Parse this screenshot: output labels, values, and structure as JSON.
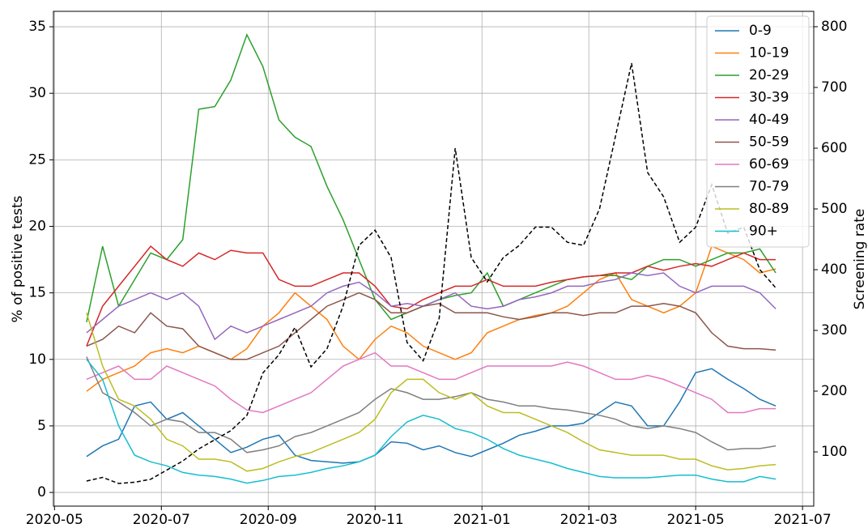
{
  "chart_data": {
    "type": "line",
    "ylabel": "% of positive tests",
    "y2label": "Screening rate",
    "grid": true,
    "legend": "upper right",
    "xlim": [
      4.98,
      19.21
    ],
    "ylim": [
      -1.03,
      36.16
    ],
    "y2lim": [
      10.7,
      825.3
    ],
    "xticks": [
      {
        "value": 5,
        "label": "2020-05"
      },
      {
        "value": 7,
        "label": "2020-07"
      },
      {
        "value": 9,
        "label": "2020-09"
      },
      {
        "value": 11,
        "label": "2020-11"
      },
      {
        "value": 13,
        "label": "2021-01"
      },
      {
        "value": 15,
        "label": "2021-03"
      },
      {
        "value": 17,
        "label": "2021-05"
      },
      {
        "value": 19,
        "label": "2021-07"
      }
    ],
    "yticks": [
      0,
      5,
      10,
      15,
      20,
      25,
      30,
      35
    ],
    "y2ticks": [
      100,
      200,
      300,
      400,
      500,
      600,
      700,
      800
    ],
    "x": [
      5.6,
      5.9,
      6.2,
      6.5,
      6.8,
      7.1,
      7.4,
      7.7,
      8.0,
      8.3,
      8.6,
      8.9,
      9.2,
      9.5,
      9.8,
      10.1,
      10.4,
      10.7,
      11.0,
      11.3,
      11.6,
      11.9,
      12.2,
      12.5,
      12.8,
      13.1,
      13.4,
      13.7,
      14.0,
      14.3,
      14.6,
      14.9,
      15.2,
      15.5,
      15.8,
      16.1,
      16.4,
      16.7,
      17.0,
      17.3,
      17.6,
      17.9,
      18.2,
      18.5
    ],
    "series": [
      {
        "name": "0-9",
        "color": "#1f77b4",
        "values": [
          2.7,
          3.5,
          4.0,
          6.5,
          6.8,
          5.5,
          6.0,
          5.0,
          4.0,
          3.0,
          3.4,
          4.0,
          4.3,
          2.8,
          2.4,
          2.3,
          2.2,
          2.3,
          2.8,
          3.8,
          3.7,
          3.2,
          3.5,
          3.0,
          2.7,
          3.2,
          3.7,
          4.3,
          4.6,
          5.0,
          5.0,
          5.2,
          6.0,
          6.8,
          6.5,
          5.0,
          5.0,
          6.8,
          9.0,
          9.3,
          8.5,
          7.8,
          7.0,
          6.5
        ]
      },
      {
        "name": "10-19",
        "color": "#ff7f0e",
        "values": [
          7.6,
          8.5,
          9.0,
          9.5,
          10.5,
          10.8,
          10.5,
          11.0,
          10.5,
          10.0,
          10.8,
          12.5,
          13.5,
          15.0,
          14.0,
          13.0,
          11.0,
          10.0,
          11.5,
          12.5,
          12.0,
          11.0,
          10.5,
          10.0,
          10.5,
          12.0,
          12.5,
          13.0,
          13.3,
          13.5,
          14.0,
          15.0,
          16.0,
          16.5,
          14.5,
          14.0,
          13.5,
          14.0,
          15.0,
          18.5,
          18.0,
          17.5,
          16.5,
          16.8
        ]
      },
      {
        "name": "20-29",
        "color": "#2ca02c",
        "values": [
          12.8,
          18.5,
          14.0,
          16.0,
          18.0,
          17.5,
          19.0,
          28.8,
          29.0,
          31.0,
          34.4,
          32.0,
          28.0,
          26.7,
          26.0,
          23.0,
          20.5,
          17.5,
          14.5,
          13.0,
          13.5,
          14.0,
          14.5,
          14.8,
          15.0,
          16.5,
          14.0,
          14.5,
          15.0,
          15.5,
          16.0,
          16.2,
          16.3,
          16.3,
          16.0,
          17.0,
          17.5,
          17.5,
          17.0,
          17.5,
          18.0,
          18.0,
          18.3,
          16.5
        ]
      },
      {
        "name": "30-39",
        "color": "#d62728",
        "values": [
          11.0,
          14.0,
          15.5,
          17.0,
          18.5,
          17.5,
          17.0,
          18.0,
          17.5,
          18.2,
          18.0,
          18.0,
          16.0,
          15.5,
          15.5,
          16.0,
          16.5,
          16.5,
          15.5,
          14.0,
          13.8,
          14.5,
          15.0,
          15.5,
          15.5,
          16.0,
          15.5,
          15.5,
          15.5,
          15.8,
          16.0,
          16.2,
          16.3,
          16.5,
          16.5,
          17.0,
          16.7,
          17.0,
          17.2,
          17.0,
          17.5,
          18.0,
          17.5,
          17.5
        ]
      },
      {
        "name": "40-49",
        "color": "#9467bd",
        "values": [
          12.0,
          13.0,
          14.0,
          14.5,
          15.0,
          14.5,
          15.0,
          14.0,
          11.5,
          12.5,
          12.0,
          12.5,
          13.0,
          13.5,
          14.0,
          15.0,
          15.5,
          15.8,
          15.0,
          14.0,
          14.2,
          14.0,
          14.5,
          15.0,
          14.0,
          13.8,
          14.0,
          14.5,
          14.7,
          15.0,
          15.5,
          15.5,
          15.8,
          16.0,
          16.5,
          16.3,
          16.5,
          15.5,
          15.0,
          15.5,
          15.5,
          15.5,
          15.0,
          13.8
        ]
      },
      {
        "name": "50-59",
        "color": "#8c564b",
        "values": [
          11.0,
          11.5,
          12.5,
          12.0,
          13.5,
          12.5,
          12.3,
          11.0,
          10.5,
          10.0,
          10.0,
          10.5,
          11.0,
          12.0,
          13.0,
          14.0,
          14.5,
          15.0,
          14.5,
          13.5,
          13.5,
          14.0,
          14.2,
          13.5,
          13.5,
          13.5,
          13.2,
          13.0,
          13.2,
          13.5,
          13.5,
          13.3,
          13.5,
          13.5,
          14.0,
          14.0,
          14.2,
          14.0,
          13.5,
          12.0,
          11.0,
          10.8,
          10.8,
          10.7
        ]
      },
      {
        "name": "60-69",
        "color": "#e377c2",
        "values": [
          8.5,
          9.0,
          9.5,
          8.5,
          8.5,
          9.5,
          9.0,
          8.5,
          8.0,
          7.0,
          6.2,
          6.0,
          6.5,
          7.0,
          7.5,
          8.5,
          9.5,
          10.0,
          10.5,
          9.5,
          9.5,
          9.0,
          8.5,
          8.5,
          9.0,
          9.5,
          9.5,
          9.5,
          9.5,
          9.5,
          9.8,
          9.5,
          9.0,
          8.5,
          8.5,
          8.8,
          8.5,
          8.0,
          7.5,
          7.0,
          6.0,
          6.0,
          6.3,
          6.3
        ]
      },
      {
        "name": "70-79",
        "color": "#7f7f7f",
        "values": [
          10.2,
          7.5,
          6.8,
          6.0,
          5.0,
          5.5,
          5.3,
          4.5,
          4.5,
          4.0,
          3.0,
          3.2,
          3.5,
          4.2,
          4.5,
          5.0,
          5.5,
          6.0,
          7.0,
          7.8,
          7.5,
          7.0,
          7.0,
          7.2,
          7.5,
          7.0,
          6.8,
          6.5,
          6.5,
          6.3,
          6.2,
          6.0,
          5.8,
          5.5,
          5.0,
          4.8,
          5.0,
          4.8,
          4.5,
          3.8,
          3.2,
          3.3,
          3.3,
          3.5
        ]
      },
      {
        "name": "80-89",
        "color": "#bcbd22",
        "values": [
          13.5,
          9.5,
          7.0,
          6.5,
          5.5,
          4.0,
          3.5,
          2.5,
          2.5,
          2.3,
          1.6,
          1.8,
          2.3,
          2.7,
          3.0,
          3.5,
          4.0,
          4.5,
          5.5,
          7.5,
          8.5,
          8.5,
          7.5,
          7.0,
          7.5,
          6.5,
          6.0,
          6.0,
          5.5,
          5.0,
          4.5,
          3.8,
          3.2,
          3.0,
          2.8,
          2.8,
          2.8,
          2.5,
          2.5,
          2.0,
          1.7,
          1.8,
          2.0,
          2.1
        ]
      },
      {
        "name": "90+",
        "color": "#17becf",
        "values": [
          10.0,
          8.5,
          5.0,
          2.8,
          2.3,
          2.0,
          1.5,
          1.3,
          1.2,
          1.0,
          0.7,
          0.9,
          1.2,
          1.3,
          1.5,
          1.8,
          2.0,
          2.3,
          2.8,
          4.2,
          5.3,
          5.8,
          5.5,
          4.8,
          4.5,
          4.0,
          3.3,
          2.8,
          2.5,
          2.2,
          1.8,
          1.5,
          1.2,
          1.1,
          1.1,
          1.1,
          1.2,
          1.3,
          1.3,
          1.0,
          0.8,
          0.8,
          1.2,
          1.0
        ]
      },
      {
        "color": "#000000",
        "dashed": true,
        "axis": "y2",
        "values": [
          52,
          58,
          48,
          50,
          55,
          70,
          85,
          105,
          120,
          135,
          160,
          230,
          260,
          305,
          240,
          270,
          340,
          440,
          465,
          420,
          280,
          250,
          320,
          600,
          420,
          380,
          420,
          440,
          470,
          470,
          445,
          440,
          500,
          620,
          740,
          560,
          520,
          445,
          470,
          540,
          460,
          470,
          400,
          370
        ]
      }
    ]
  }
}
